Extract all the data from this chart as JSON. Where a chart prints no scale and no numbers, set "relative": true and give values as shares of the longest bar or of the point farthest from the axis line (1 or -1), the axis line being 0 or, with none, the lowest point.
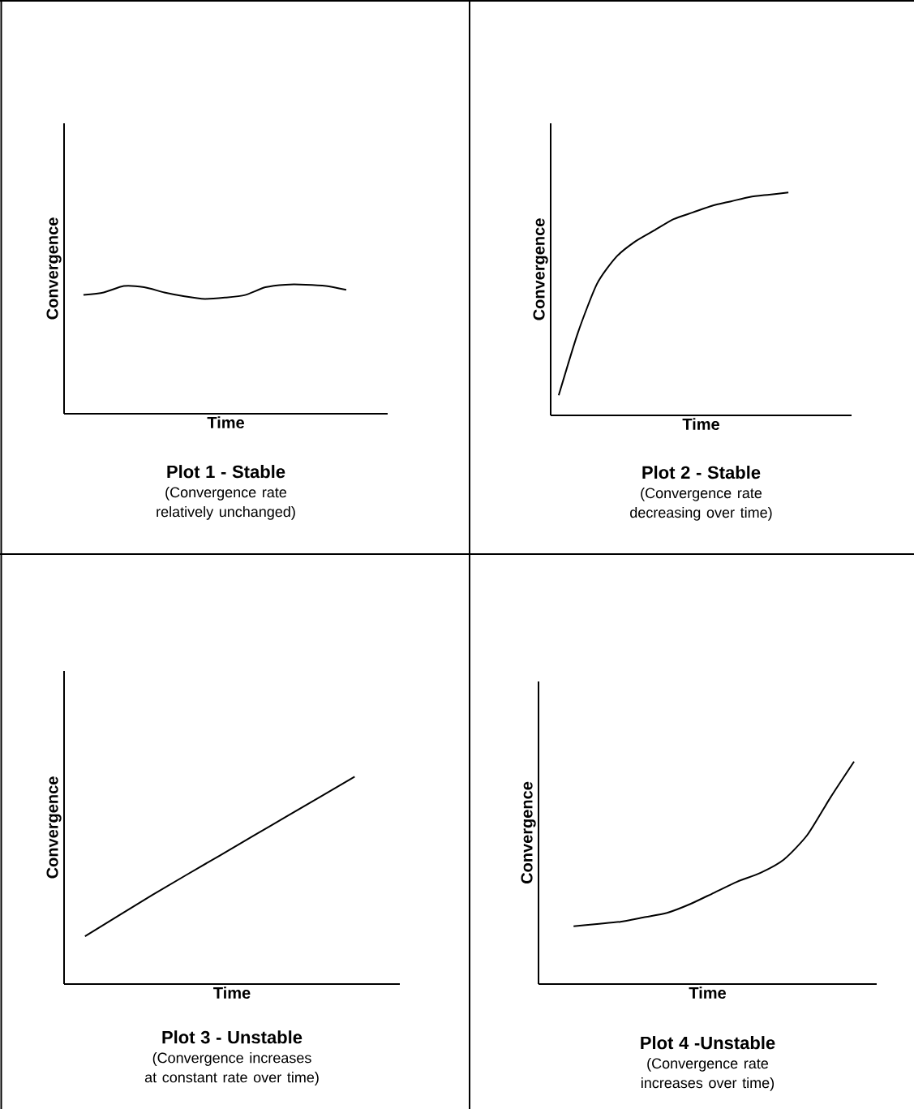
{
  "chart_data": [
    {
      "type": "line",
      "title": "Plot 1 - Stable",
      "subtitle": "(Convergence rate relatively unchanged)",
      "xlabel": "Time",
      "ylabel": "Convergence",
      "relative": true,
      "categories": [
        null,
        null,
        null,
        null,
        null,
        null,
        null,
        null,
        null,
        null,
        null,
        null,
        null,
        null
      ],
      "series": [
        {
          "color": "#000000",
          "values": [
            0.92,
            0.94,
            0.99,
            0.98,
            0.94,
            0.91,
            0.89,
            0.9,
            0.92,
            0.98,
            1.0,
            1.0,
            0.99,
            0.96
          ]
        }
      ]
    },
    {
      "type": "line",
      "title": "Plot 2 - Stable",
      "subtitle": "(Convergence rate decreasing over time)",
      "xlabel": "Time",
      "ylabel": "Convergence",
      "relative": true,
      "categories": [
        null,
        null,
        null,
        null,
        null,
        null,
        null,
        null,
        null,
        null,
        null,
        null,
        null
      ],
      "series": [
        {
          "color": "#000000",
          "values": [
            0.09,
            0.37,
            0.59,
            0.71,
            0.78,
            0.83,
            0.88,
            0.91,
            0.94,
            0.96,
            0.98,
            0.99,
            1.0
          ]
        }
      ]
    },
    {
      "type": "line",
      "title": "Plot 3 - Unstable",
      "subtitle": "(Convergence increases at constant rate over time)",
      "xlabel": "Time",
      "ylabel": "Convergence",
      "relative": true,
      "categories": [
        null,
        null,
        null,
        null,
        null
      ],
      "series": [
        {
          "color": "#000000",
          "values": [
            0.23,
            0.43,
            0.62,
            0.81,
            1.0
          ]
        }
      ]
    },
    {
      "type": "line",
      "title": "Plot 4 -Unstable",
      "subtitle": "(Convergence rate increases over time)",
      "xlabel": "Time",
      "ylabel": "Convergence",
      "relative": true,
      "categories": [
        null,
        null,
        null,
        null,
        null,
        null,
        null,
        null,
        null,
        null,
        null,
        null,
        null
      ],
      "series": [
        {
          "color": "#000000",
          "values": [
            0.26,
            0.27,
            0.28,
            0.3,
            0.32,
            0.36,
            0.41,
            0.46,
            0.5,
            0.56,
            0.67,
            0.84,
            1.0
          ]
        }
      ]
    }
  ]
}
